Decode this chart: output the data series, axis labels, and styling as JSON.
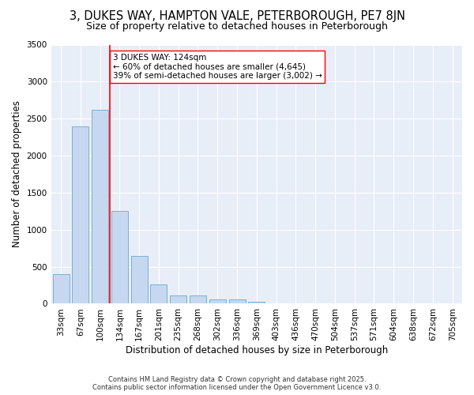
{
  "title1": "3, DUKES WAY, HAMPTON VALE, PETERBOROUGH, PE7 8JN",
  "title2": "Size of property relative to detached houses in Peterborough",
  "xlabel": "Distribution of detached houses by size in Peterborough",
  "ylabel": "Number of detached properties",
  "footnote": "Contains HM Land Registry data © Crown copyright and database right 2025.\nContains public sector information licensed under the Open Government Licence v3.0.",
  "categories": [
    "33sqm",
    "67sqm",
    "100sqm",
    "134sqm",
    "167sqm",
    "201sqm",
    "235sqm",
    "268sqm",
    "302sqm",
    "336sqm",
    "369sqm",
    "403sqm",
    "436sqm",
    "470sqm",
    "504sqm",
    "537sqm",
    "571sqm",
    "604sqm",
    "638sqm",
    "672sqm",
    "705sqm"
  ],
  "values": [
    400,
    2400,
    2620,
    1250,
    640,
    260,
    110,
    110,
    55,
    55,
    30,
    0,
    0,
    0,
    0,
    0,
    0,
    0,
    0,
    0,
    0
  ],
  "bar_color": "#c5d8f0",
  "bar_edge_color": "#7bafd4",
  "vline_x": 2.5,
  "vline_color": "red",
  "annotation_text": "3 DUKES WAY: 124sqm\n← 60% of detached houses are smaller (4,645)\n39% of semi-detached houses are larger (3,002) →",
  "annotation_box_color": "white",
  "annotation_box_edge": "red",
  "ylim": [
    0,
    3500
  ],
  "yticks": [
    0,
    500,
    1000,
    1500,
    2000,
    2500,
    3000,
    3500
  ],
  "background_color": "#e8eef8",
  "grid_color": "white",
  "title1_fontsize": 10.5,
  "title2_fontsize": 9,
  "xlabel_fontsize": 8.5,
  "ylabel_fontsize": 8.5,
  "tick_fontsize": 7.5,
  "annotation_fontsize": 7.5,
  "footnote_fontsize": 6
}
